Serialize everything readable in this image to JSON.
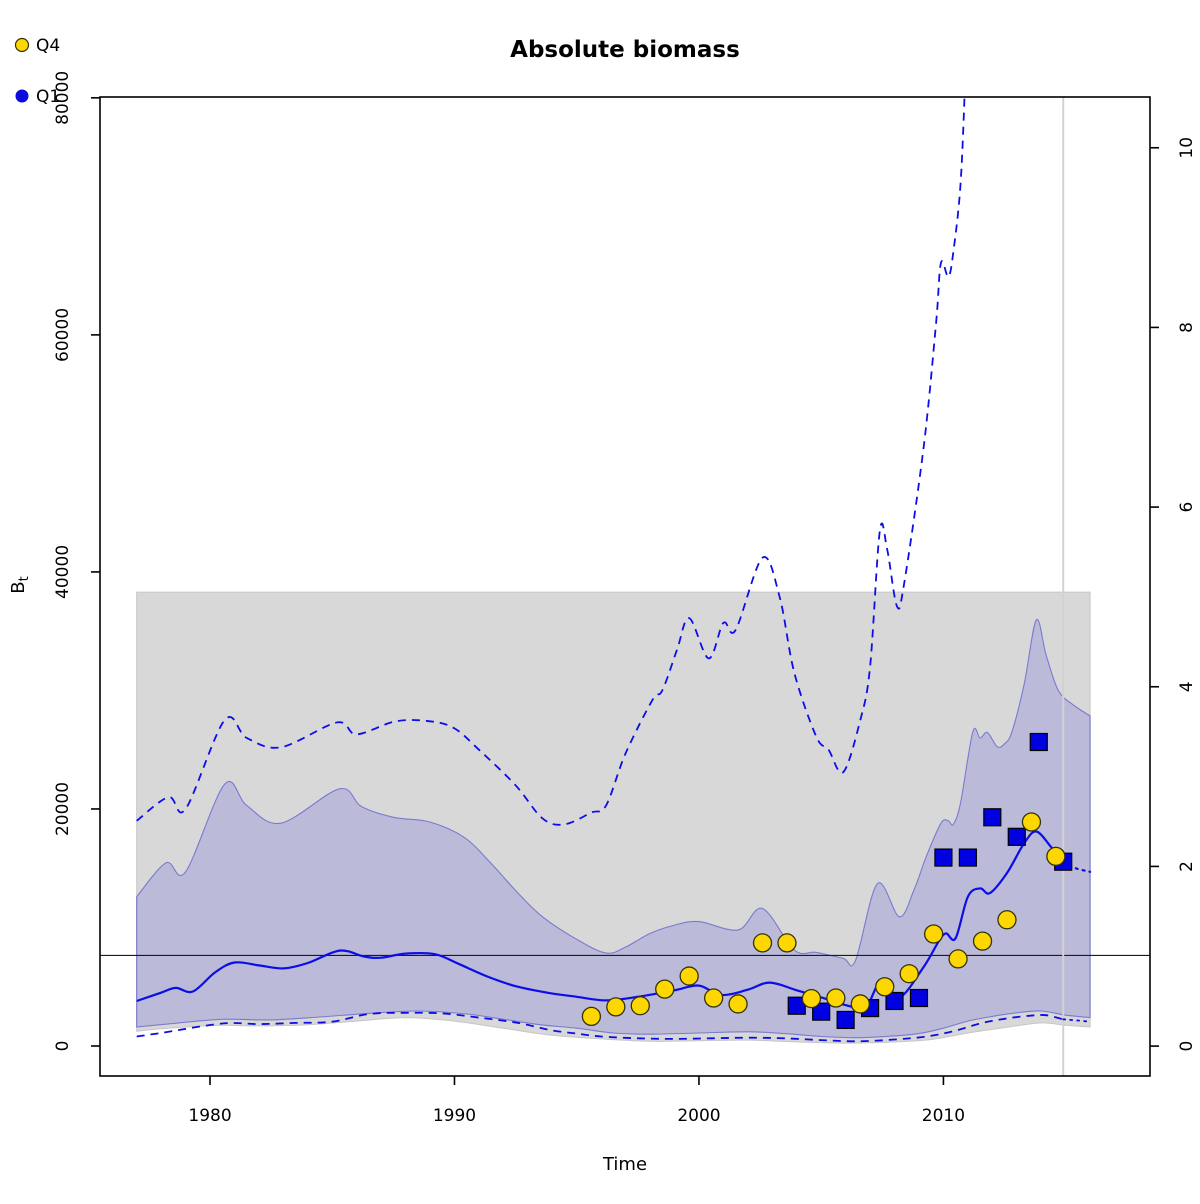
{
  "title": "Absolute biomass",
  "legend": {
    "items": [
      {
        "label": "Q4",
        "marker": "circle",
        "color": "#ffd700"
      },
      {
        "label": "Q1",
        "marker": "circle",
        "color": "#0a0ae0"
      }
    ]
  },
  "axes": {
    "x": {
      "label": "Time",
      "ticks": [
        "1980",
        "1990",
        "2000",
        "2010"
      ],
      "tick_values": [
        1980,
        1990,
        2000,
        2010
      ]
    },
    "y_left": {
      "label_main": "B",
      "label_sub": "t",
      "ticks": [
        "0",
        "20000",
        "40000",
        "60000",
        "80000"
      ],
      "tick_values": [
        0,
        20000,
        40000,
        60000,
        80000
      ]
    },
    "y_right": {
      "ticks": [
        "0",
        "2",
        "4",
        "6",
        "8",
        "10"
      ],
      "tick_values": [
        0,
        2,
        4,
        6,
        8,
        10
      ]
    }
  },
  "colors": {
    "line_blue": "#0d0de8",
    "marker_q4_fill": "#ffd700",
    "marker_q4_stroke": "#33330a",
    "marker_q1_fill": "#0000e0",
    "marker_q1_stroke": "#000000",
    "band_gray_fill": "#d8d8d8",
    "band_gray_edge": "#c6c6c6",
    "band_blue_fill": "rgba(30,30,225,0.155)",
    "band_blue_edge": "rgba(80,80,205,0.65)",
    "reference_line": "#1a1a1a",
    "vertical_line": "#d2d2d2",
    "frame": "#000000"
  },
  "chart_data": {
    "type": "line",
    "x_unit": "year",
    "xlim": [
      1975.5,
      2018.45
    ],
    "ylim_left": [
      -2530,
      80070
    ],
    "ylim_right": [
      -0.333,
      10.565
    ],
    "grid": false,
    "reference_line_left_value": 7640,
    "reference_line_right_value": 1.0,
    "vertical_line_year": 2014.9,
    "data_start_year": 1977,
    "data_end_year": 2016,
    "gray_band": {
      "name": "outer 95% confidence region",
      "top_value": 38300,
      "bottom": [
        [
          1977,
          1250
        ],
        [
          1978,
          1450
        ],
        [
          1979,
          1600
        ],
        [
          1980.5,
          1750
        ],
        [
          1982,
          1700
        ],
        [
          1984,
          1800
        ],
        [
          1986,
          2100
        ],
        [
          1988,
          2400
        ],
        [
          1990,
          2100
        ],
        [
          1992,
          1500
        ],
        [
          1994,
          900
        ],
        [
          1996,
          600
        ],
        [
          1998,
          400
        ],
        [
          2000,
          450
        ],
        [
          2002,
          500
        ],
        [
          2004,
          350
        ],
        [
          2006,
          250
        ],
        [
          2008,
          350
        ],
        [
          2009.5,
          550
        ],
        [
          2011,
          1100
        ],
        [
          2012.5,
          1550
        ],
        [
          2014,
          1950
        ],
        [
          2015,
          1750
        ],
        [
          2016,
          1600
        ]
      ]
    },
    "blue_band": {
      "name": "inner confidence band of Bt",
      "top": [
        [
          1977,
          12600
        ],
        [
          1978.2,
          15450
        ],
        [
          1979,
          14700
        ],
        [
          1980.6,
          22100
        ],
        [
          1981.5,
          20300
        ],
        [
          1982.9,
          18800
        ],
        [
          1985.3,
          21700
        ],
        [
          1986.2,
          20200
        ],
        [
          1987.5,
          19300
        ],
        [
          1989,
          18900
        ],
        [
          1990.4,
          17600
        ],
        [
          1991.5,
          15400
        ],
        [
          1992.6,
          12900
        ],
        [
          1993.6,
          10900
        ],
        [
          1995,
          9000
        ],
        [
          1996.2,
          7850
        ],
        [
          1997,
          8350
        ],
        [
          1998,
          9500
        ],
        [
          1999,
          10200
        ],
        [
          2000,
          10500
        ],
        [
          2001.6,
          9800
        ],
        [
          2002.6,
          11600
        ],
        [
          2003.9,
          8100
        ],
        [
          2004.8,
          7900
        ],
        [
          2005.9,
          7400
        ],
        [
          2006.4,
          7200
        ],
        [
          2007.3,
          13700
        ],
        [
          2008.2,
          10900
        ],
        [
          2008.8,
          13200
        ],
        [
          2009.3,
          16000
        ],
        [
          2009.9,
          18800
        ],
        [
          2010.2,
          19000
        ],
        [
          2010.4,
          18700
        ],
        [
          2010.7,
          20500
        ],
        [
          2011.2,
          26500
        ],
        [
          2011.5,
          26000
        ],
        [
          2011.8,
          26450
        ],
        [
          2012.2,
          25250
        ],
        [
          2012.5,
          25500
        ],
        [
          2012.8,
          26500
        ],
        [
          2013.3,
          30500
        ],
        [
          2013.8,
          35950
        ],
        [
          2014.2,
          33000
        ],
        [
          2014.7,
          30000
        ],
        [
          2015.3,
          28800
        ],
        [
          2016,
          27850
        ]
      ],
      "bottom": [
        [
          1977,
          1600
        ],
        [
          1978.5,
          1900
        ],
        [
          1980.5,
          2250
        ],
        [
          1982.5,
          2200
        ],
        [
          1984.5,
          2450
        ],
        [
          1986.5,
          2750
        ],
        [
          1988.5,
          2950
        ],
        [
          1990.5,
          2700
        ],
        [
          1992,
          2250
        ],
        [
          1993.5,
          1800
        ],
        [
          1995,
          1500
        ],
        [
          1996.5,
          1100
        ],
        [
          1998,
          1000
        ],
        [
          2000,
          1100
        ],
        [
          2002,
          1200
        ],
        [
          2003.5,
          1050
        ],
        [
          2005,
          800
        ],
        [
          2006.5,
          700
        ],
        [
          2008,
          850
        ],
        [
          2009,
          1050
        ],
        [
          2010,
          1500
        ],
        [
          2011,
          2100
        ],
        [
          2012,
          2500
        ],
        [
          2013,
          2800
        ],
        [
          2014,
          2950
        ],
        [
          2015,
          2600
        ],
        [
          2016,
          2400
        ]
      ]
    },
    "estimate": {
      "name": "Bt estimate",
      "solid": [
        [
          1977,
          3800
        ],
        [
          1978,
          4500
        ],
        [
          1978.6,
          4900
        ],
        [
          1979.3,
          4600
        ],
        [
          1980.2,
          6200
        ],
        [
          1981,
          7050
        ],
        [
          1982,
          6800
        ],
        [
          1983,
          6550
        ],
        [
          1984,
          7000
        ],
        [
          1985.3,
          8050
        ],
        [
          1986.3,
          7550
        ],
        [
          1987,
          7450
        ],
        [
          1988,
          7800
        ],
        [
          1989.2,
          7750
        ],
        [
          1990.2,
          6900
        ],
        [
          1991.3,
          5900
        ],
        [
          1992.5,
          5050
        ],
        [
          1993.8,
          4500
        ],
        [
          1995,
          4150
        ],
        [
          1996.2,
          3850
        ],
        [
          1997.5,
          4150
        ],
        [
          1999,
          4700
        ],
        [
          2000,
          5100
        ],
        [
          2000.9,
          4300
        ],
        [
          2002,
          4750
        ],
        [
          2002.9,
          5350
        ],
        [
          2004,
          4700
        ],
        [
          2005,
          4100
        ],
        [
          2006.3,
          3300
        ],
        [
          2006.6,
          3650
        ],
        [
          2006.9,
          3450
        ],
        [
          2007.5,
          5650
        ],
        [
          2008.2,
          4100
        ],
        [
          2009.2,
          6700
        ],
        [
          2009.8,
          8800
        ],
        [
          2010.1,
          9500
        ],
        [
          2010.5,
          9100
        ],
        [
          2011,
          12600
        ],
        [
          2011.5,
          13300
        ],
        [
          2011.9,
          12900
        ],
        [
          2012.6,
          14600
        ],
        [
          2013.3,
          17100
        ],
        [
          2013.8,
          18100
        ],
        [
          2014.4,
          16800
        ],
        [
          2014.9,
          15500
        ]
      ],
      "dotted_prediction": [
        [
          2014.9,
          15500
        ],
        [
          2015.4,
          15000
        ],
        [
          2016,
          14700
        ]
      ]
    },
    "ci_upper_dashed": [
      [
        1977,
        19000
      ],
      [
        1978.3,
        21000
      ],
      [
        1979,
        20000
      ],
      [
        1980.6,
        27500
      ],
      [
        1981.5,
        26000
      ],
      [
        1982.9,
        25200
      ],
      [
        1985.2,
        27300
      ],
      [
        1986,
        26300
      ],
      [
        1987.6,
        27400
      ],
      [
        1989,
        27400
      ],
      [
        1990,
        26800
      ],
      [
        1991,
        25000
      ],
      [
        1992.5,
        22000
      ],
      [
        1993.6,
        19200
      ],
      [
        1994.5,
        18700
      ],
      [
        1995.6,
        19700
      ],
      [
        1996.2,
        20300
      ],
      [
        1997,
        24700
      ],
      [
        1998.1,
        29200
      ],
      [
        1998.5,
        30000
      ],
      [
        1999.1,
        33400
      ],
      [
        1999.6,
        36100
      ],
      [
        2000.4,
        32700
      ],
      [
        2001,
        35700
      ],
      [
        2001.5,
        35100
      ],
      [
        2002.6,
        41200
      ],
      [
        2003.3,
        37900
      ],
      [
        2003.9,
        31500
      ],
      [
        2004.8,
        26100
      ],
      [
        2005.3,
        25000
      ],
      [
        2005.9,
        23100
      ],
      [
        2006.6,
        27500
      ],
      [
        2007,
        32000
      ],
      [
        2007.4,
        43500
      ],
      [
        2007.7,
        41900
      ],
      [
        2008.1,
        37100
      ],
      [
        2008.4,
        39100
      ],
      [
        2009.2,
        50700
      ],
      [
        2009.7,
        61000
      ],
      [
        2009.9,
        66100
      ],
      [
        2010.2,
        64900
      ],
      [
        2010.4,
        66900
      ],
      [
        2010.7,
        72700
      ],
      [
        2010.9,
        82000
      ]
    ],
    "ci_lower_dashed": [
      [
        1977,
        800
      ],
      [
        1978,
        1100
      ],
      [
        1980.5,
        1900
      ],
      [
        1982,
        1850
      ],
      [
        1983.5,
        1950
      ],
      [
        1985,
        2050
      ],
      [
        1986.5,
        2700
      ],
      [
        1988,
        2800
      ],
      [
        1989.5,
        2750
      ],
      [
        1991,
        2400
      ],
      [
        1992.6,
        1950
      ],
      [
        1993.9,
        1350
      ],
      [
        1995,
        1050
      ],
      [
        1996,
        800
      ],
      [
        1997.5,
        650
      ],
      [
        1999,
        600
      ],
      [
        2000.5,
        650
      ],
      [
        2002,
        700
      ],
      [
        2003.5,
        650
      ],
      [
        2005,
        500
      ],
      [
        2006.5,
        400
      ],
      [
        2008,
        550
      ],
      [
        2009.3,
        800
      ],
      [
        2010.5,
        1300
      ],
      [
        2011.5,
        1900
      ],
      [
        2012.5,
        2300
      ],
      [
        2013.5,
        2550
      ],
      [
        2014.2,
        2600
      ],
      [
        2014.9,
        2250
      ]
    ],
    "ci_lower_dotted": [
      [
        2014.9,
        2250
      ],
      [
        2015.5,
        2150
      ],
      [
        2016,
        2050
      ]
    ],
    "points_q4": [
      [
        1995.6,
        2500
      ],
      [
        1996.6,
        3300
      ],
      [
        1997.6,
        3400
      ],
      [
        1998.6,
        4800
      ],
      [
        1999.6,
        5900
      ],
      [
        2000.6,
        4050
      ],
      [
        2001.6,
        3550
      ],
      [
        2002.6,
        8700
      ],
      [
        2003.6,
        8700
      ],
      [
        2004.6,
        4000
      ],
      [
        2005.6,
        4050
      ],
      [
        2006.6,
        3550
      ],
      [
        2007.6,
        5000
      ],
      [
        2008.6,
        6100
      ],
      [
        2009.6,
        9450
      ],
      [
        2010.6,
        7350
      ],
      [
        2011.6,
        8850
      ],
      [
        2012.6,
        10650
      ],
      [
        2013.6,
        18900
      ],
      [
        2014.6,
        16000
      ]
    ],
    "points_q1": [
      [
        2004,
        3400
      ],
      [
        2005,
        2900
      ],
      [
        2006,
        2200
      ],
      [
        2007,
        3200
      ],
      [
        2008,
        3800
      ],
      [
        2009,
        4050
      ],
      [
        2010,
        15900
      ],
      [
        2011,
        15900
      ],
      [
        2012,
        19300
      ],
      [
        2013,
        17650
      ],
      [
        2013.9,
        25650
      ],
      [
        2014.9,
        15550
      ]
    ]
  }
}
